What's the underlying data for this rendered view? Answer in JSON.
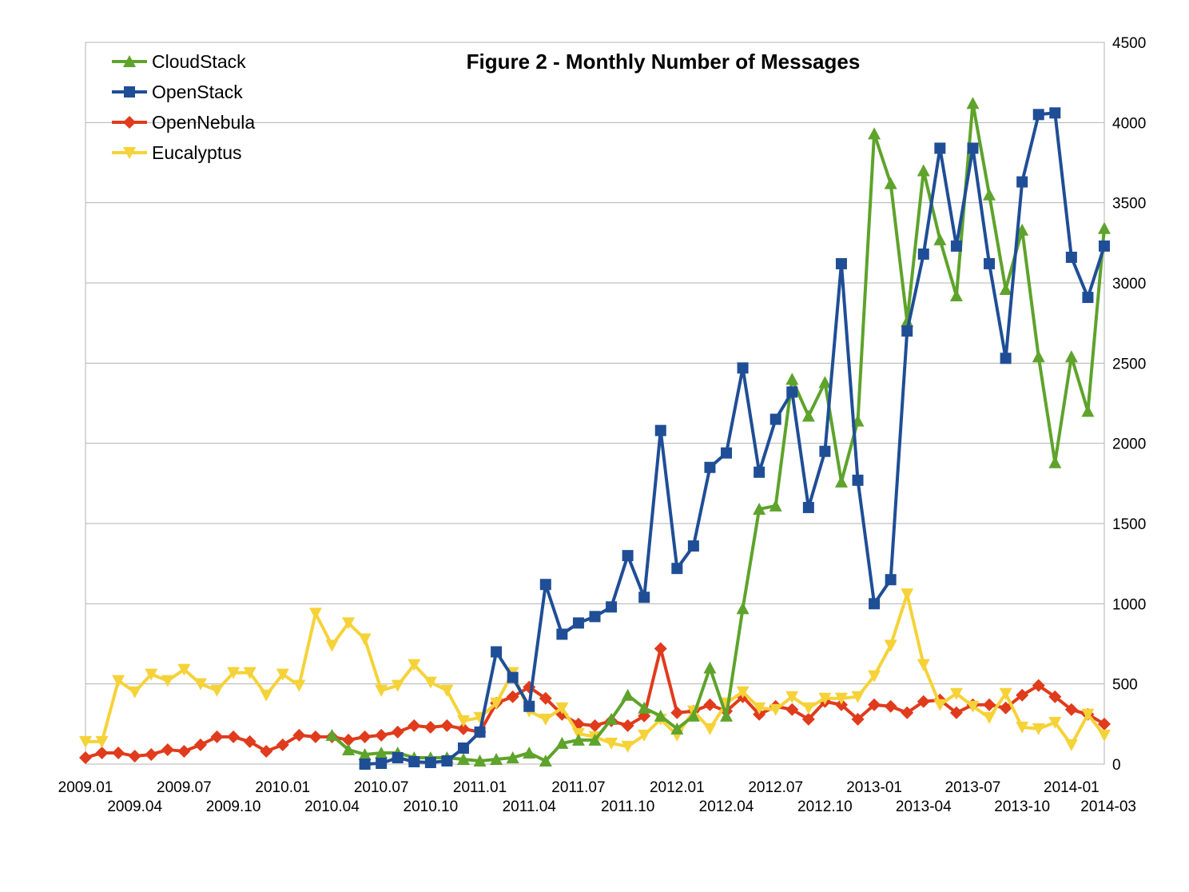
{
  "chart_data": {
    "type": "line",
    "title": "Figure 2 - Monthly Number of Messages",
    "x_start": "2009-01",
    "x_end": "2014-03",
    "x_tick_labels": [
      "2009.01",
      "2009.04",
      "2009.07",
      "2009.10",
      "2010.01",
      "2010.04",
      "2010.07",
      "2010.10",
      "2011.01",
      "2011.04",
      "2011.07",
      "2011.10",
      "2012.01",
      "2012.04",
      "2012.07",
      "2012.10",
      "2013-01",
      "2013-04",
      "2013-07",
      "2013-10",
      "2014-01",
      "2014-03"
    ],
    "y_axis": {
      "position": "right",
      "ylim": [
        0,
        4500
      ],
      "ticks": [
        0,
        500,
        1000,
        1500,
        2000,
        2500,
        3000,
        3500,
        4000,
        4500
      ]
    },
    "grid": true,
    "legend": "top-left",
    "series": [
      {
        "name": "CloudStack",
        "color": "#5ea32b",
        "marker": "triangle-up",
        "points": [
          [
            "2010-04",
            180
          ],
          [
            "2010-05",
            90
          ],
          [
            "2010-06",
            60
          ],
          [
            "2010-07",
            70
          ],
          [
            "2010-08",
            70
          ],
          [
            "2010-09",
            40
          ],
          [
            "2010-10",
            40
          ],
          [
            "2010-11",
            40
          ],
          [
            "2010-12",
            30
          ],
          [
            "2011-01",
            20
          ],
          [
            "2011-02",
            30
          ],
          [
            "2011-03",
            40
          ],
          [
            "2011-04",
            70
          ],
          [
            "2011-05",
            20
          ],
          [
            "2011-06",
            130
          ],
          [
            "2011-07",
            150
          ],
          [
            "2011-08",
            150
          ],
          [
            "2011-09",
            280
          ],
          [
            "2011-10",
            430
          ],
          [
            "2011-11",
            350
          ],
          [
            "2011-12",
            300
          ],
          [
            "2012-01",
            220
          ],
          [
            "2012-02",
            300
          ],
          [
            "2012-03",
            600
          ],
          [
            "2012-04",
            300
          ],
          [
            "2012-05",
            970
          ],
          [
            "2012-06",
            1590
          ],
          [
            "2012-07",
            1610
          ],
          [
            "2012-08",
            2400
          ],
          [
            "2012-09",
            2170
          ],
          [
            "2012-10",
            2380
          ],
          [
            "2012-11",
            1760
          ],
          [
            "2012-12",
            2140
          ],
          [
            "2013-01",
            3930
          ],
          [
            "2013-02",
            3620
          ],
          [
            "2013-03",
            2760
          ],
          [
            "2013-04",
            3700
          ],
          [
            "2013-05",
            3270
          ],
          [
            "2013-06",
            2920
          ],
          [
            "2013-07",
            4120
          ],
          [
            "2013-08",
            3550
          ],
          [
            "2013-09",
            2960
          ],
          [
            "2013-10",
            3330
          ],
          [
            "2013-11",
            2540
          ],
          [
            "2013-12",
            1880
          ],
          [
            "2014-01",
            2540
          ],
          [
            "2014-02",
            2200
          ],
          [
            "2014-03",
            3340
          ]
        ]
      },
      {
        "name": "OpenStack",
        "color": "#1f4e96",
        "marker": "square",
        "points": [
          [
            "2010-06",
            0
          ],
          [
            "2010-07",
            5
          ],
          [
            "2010-08",
            40
          ],
          [
            "2010-09",
            15
          ],
          [
            "2010-10",
            10
          ],
          [
            "2010-11",
            20
          ],
          [
            "2010-12",
            100
          ],
          [
            "2011-01",
            200
          ],
          [
            "2011-02",
            700
          ],
          [
            "2011-03",
            540
          ],
          [
            "2011-04",
            360
          ],
          [
            "2011-05",
            1120
          ],
          [
            "2011-06",
            810
          ],
          [
            "2011-07",
            880
          ],
          [
            "2011-08",
            920
          ],
          [
            "2011-09",
            980
          ],
          [
            "2011-10",
            1300
          ],
          [
            "2011-11",
            1040
          ],
          [
            "2011-12",
            2080
          ],
          [
            "2012-01",
            1220
          ],
          [
            "2012-02",
            1360
          ],
          [
            "2012-03",
            1850
          ],
          [
            "2012-04",
            1940
          ],
          [
            "2012-05",
            2470
          ],
          [
            "2012-06",
            1820
          ],
          [
            "2012-07",
            2150
          ],
          [
            "2012-08",
            2320
          ],
          [
            "2012-09",
            1600
          ],
          [
            "2012-10",
            1950
          ],
          [
            "2012-11",
            3120
          ],
          [
            "2012-12",
            1770
          ],
          [
            "2013-01",
            1000
          ],
          [
            "2013-02",
            1150
          ],
          [
            "2013-03",
            2700
          ],
          [
            "2013-04",
            3180
          ],
          [
            "2013-05",
            3840
          ],
          [
            "2013-06",
            3230
          ],
          [
            "2013-07",
            3840
          ],
          [
            "2013-08",
            3120
          ],
          [
            "2013-09",
            2530
          ],
          [
            "2013-10",
            3630
          ],
          [
            "2013-11",
            4050
          ],
          [
            "2013-12",
            4060
          ],
          [
            "2014-01",
            3160
          ],
          [
            "2014-02",
            2910
          ],
          [
            "2014-03",
            3230
          ]
        ]
      },
      {
        "name": "OpenNebula",
        "color": "#e03b1c",
        "marker": "diamond",
        "points": [
          [
            "2009-01",
            40
          ],
          [
            "2009-02",
            70
          ],
          [
            "2009-03",
            70
          ],
          [
            "2009-04",
            50
          ],
          [
            "2009-05",
            60
          ],
          [
            "2009-06",
            90
          ],
          [
            "2009-07",
            80
          ],
          [
            "2009-08",
            120
          ],
          [
            "2009-09",
            170
          ],
          [
            "2009-10",
            170
          ],
          [
            "2009-11",
            140
          ],
          [
            "2009-12",
            80
          ],
          [
            "2010-01",
            120
          ],
          [
            "2010-02",
            180
          ],
          [
            "2010-03",
            170
          ],
          [
            "2010-04",
            170
          ],
          [
            "2010-05",
            150
          ],
          [
            "2010-06",
            170
          ],
          [
            "2010-07",
            180
          ],
          [
            "2010-08",
            200
          ],
          [
            "2010-09",
            240
          ],
          [
            "2010-10",
            230
          ],
          [
            "2010-11",
            240
          ],
          [
            "2010-12",
            220
          ],
          [
            "2011-01",
            200
          ],
          [
            "2011-02",
            380
          ],
          [
            "2011-03",
            420
          ],
          [
            "2011-04",
            480
          ],
          [
            "2011-05",
            410
          ],
          [
            "2011-06",
            310
          ],
          [
            "2011-07",
            250
          ],
          [
            "2011-08",
            240
          ],
          [
            "2011-09",
            270
          ],
          [
            "2011-10",
            240
          ],
          [
            "2011-11",
            300
          ],
          [
            "2011-12",
            720
          ],
          [
            "2012-01",
            320
          ],
          [
            "2012-02",
            330
          ],
          [
            "2012-03",
            370
          ],
          [
            "2012-04",
            330
          ],
          [
            "2012-05",
            420
          ],
          [
            "2012-06",
            310
          ],
          [
            "2012-07",
            360
          ],
          [
            "2012-08",
            340
          ],
          [
            "2012-09",
            280
          ],
          [
            "2012-10",
            390
          ],
          [
            "2012-11",
            370
          ],
          [
            "2012-12",
            280
          ],
          [
            "2013-01",
            370
          ],
          [
            "2013-02",
            360
          ],
          [
            "2013-03",
            320
          ],
          [
            "2013-04",
            390
          ],
          [
            "2013-05",
            400
          ],
          [
            "2013-06",
            320
          ],
          [
            "2013-07",
            370
          ],
          [
            "2013-08",
            370
          ],
          [
            "2013-09",
            350
          ],
          [
            "2013-10",
            430
          ],
          [
            "2013-11",
            490
          ],
          [
            "2013-12",
            420
          ],
          [
            "2014-01",
            340
          ],
          [
            "2014-02",
            310
          ],
          [
            "2014-03",
            250
          ]
        ]
      },
      {
        "name": "Eucalyptus",
        "color": "#f5d238",
        "marker": "triangle-down",
        "points": [
          [
            "2009-01",
            140
          ],
          [
            "2009-02",
            140
          ],
          [
            "2009-03",
            520
          ],
          [
            "2009-04",
            450
          ],
          [
            "2009-05",
            560
          ],
          [
            "2009-06",
            520
          ],
          [
            "2009-07",
            590
          ],
          [
            "2009-08",
            500
          ],
          [
            "2009-09",
            460
          ],
          [
            "2009-10",
            570
          ],
          [
            "2009-11",
            570
          ],
          [
            "2009-12",
            430
          ],
          [
            "2010-01",
            560
          ],
          [
            "2010-02",
            490
          ],
          [
            "2010-03",
            940
          ],
          [
            "2010-04",
            740
          ],
          [
            "2010-05",
            880
          ],
          [
            "2010-06",
            780
          ],
          [
            "2010-07",
            460
          ],
          [
            "2010-08",
            490
          ],
          [
            "2010-09",
            620
          ],
          [
            "2010-10",
            510
          ],
          [
            "2010-11",
            460
          ],
          [
            "2010-12",
            270
          ],
          [
            "2011-01",
            290
          ],
          [
            "2011-02",
            380
          ],
          [
            "2011-03",
            570
          ],
          [
            "2011-04",
            330
          ],
          [
            "2011-05",
            280
          ],
          [
            "2011-06",
            350
          ],
          [
            "2011-07",
            190
          ],
          [
            "2011-08",
            170
          ],
          [
            "2011-09",
            130
          ],
          [
            "2011-10",
            110
          ],
          [
            "2011-11",
            180
          ],
          [
            "2011-12",
            280
          ],
          [
            "2012-01",
            180
          ],
          [
            "2012-02",
            330
          ],
          [
            "2012-03",
            220
          ],
          [
            "2012-04",
            380
          ],
          [
            "2012-05",
            450
          ],
          [
            "2012-06",
            350
          ],
          [
            "2012-07",
            340
          ],
          [
            "2012-08",
            420
          ],
          [
            "2012-09",
            350
          ],
          [
            "2012-10",
            410
          ],
          [
            "2012-11",
            410
          ],
          [
            "2012-12",
            420
          ],
          [
            "2013-01",
            550
          ],
          [
            "2013-02",
            740
          ],
          [
            "2013-03",
            1060
          ],
          [
            "2013-04",
            620
          ],
          [
            "2013-05",
            370
          ],
          [
            "2013-06",
            440
          ],
          [
            "2013-07",
            360
          ],
          [
            "2013-08",
            290
          ],
          [
            "2013-09",
            440
          ],
          [
            "2013-10",
            230
          ],
          [
            "2013-11",
            220
          ],
          [
            "2013-12",
            260
          ],
          [
            "2014-01",
            120
          ],
          [
            "2014-02",
            310
          ],
          [
            "2014-03",
            180
          ]
        ]
      }
    ]
  }
}
